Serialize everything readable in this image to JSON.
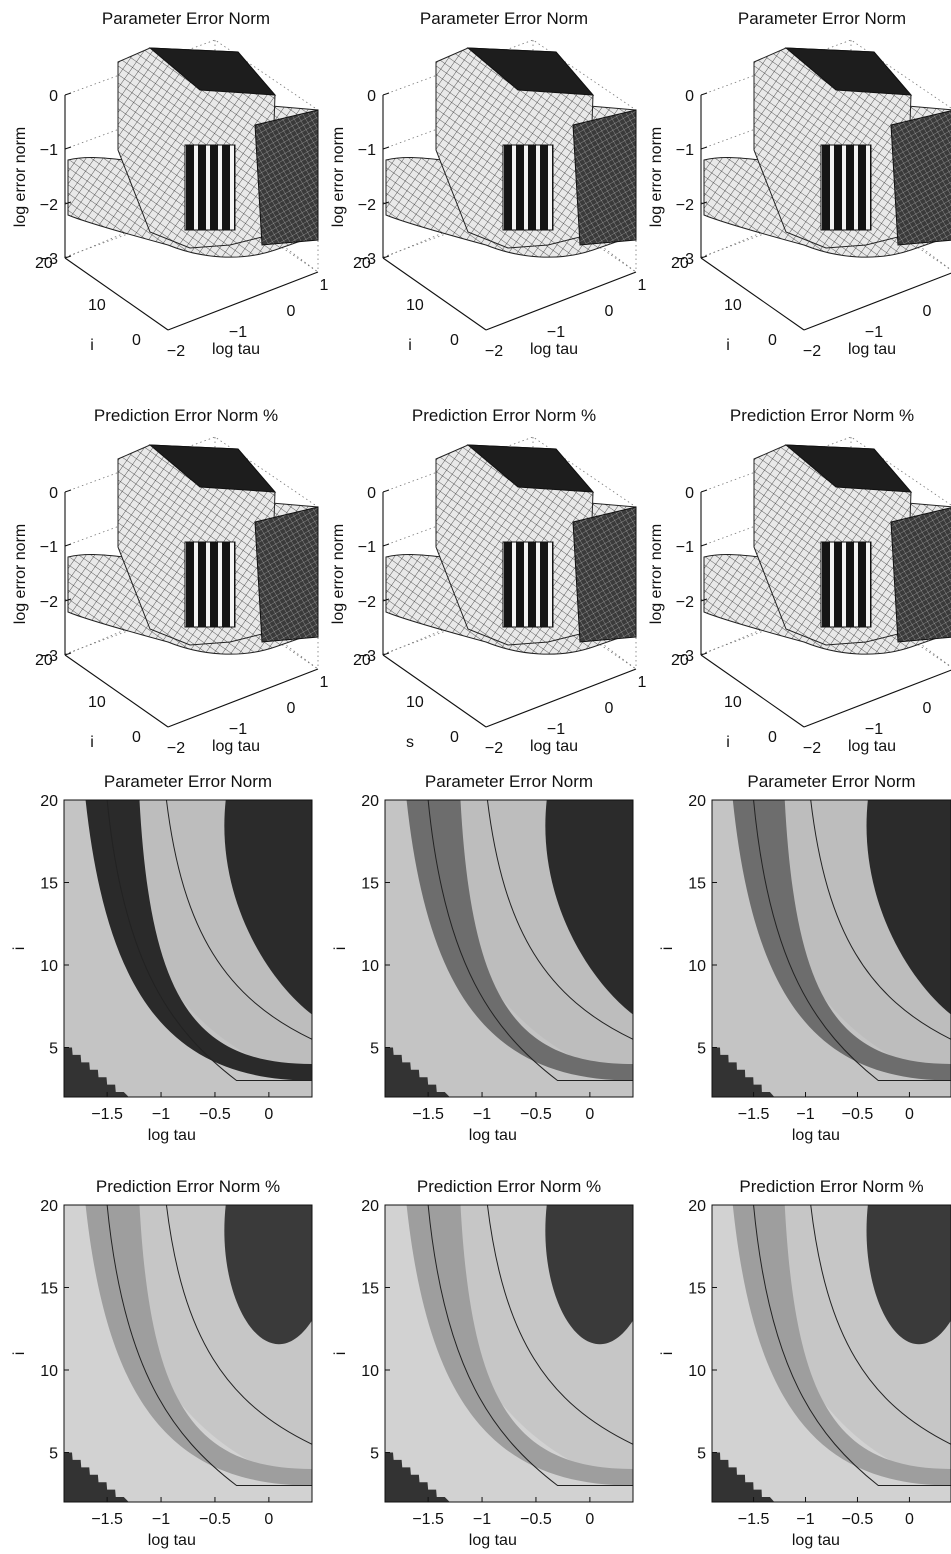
{
  "figure": {
    "panels_3d": [
      {
        "title": "Parameter Error Norm",
        "zlabel": "log error norm",
        "ylabel": "i",
        "xlabel": "log tau",
        "zticks": [
          "0",
          "−1",
          "−2",
          "−3"
        ],
        "yticks": [
          "20",
          "10",
          "0"
        ],
        "xticks": [
          "−2",
          "−1",
          "0",
          "1"
        ]
      },
      {
        "title": "Parameter Error Norm",
        "zlabel": "log error norm",
        "ylabel": "i",
        "xlabel": "log tau",
        "zticks": [
          "0",
          "−1",
          "−2",
          "−3"
        ],
        "yticks": [
          "20",
          "10",
          "0"
        ],
        "xticks": [
          "−2",
          "−1",
          "0",
          "1"
        ]
      },
      {
        "title": "Parameter Error Norm",
        "zlabel": "log error norm",
        "ylabel": "i",
        "xlabel": "log tau",
        "zticks": [
          "0",
          "−1",
          "−2",
          "−3"
        ],
        "yticks": [
          "20",
          "10",
          "0"
        ],
        "xticks": [
          "−2",
          "−1",
          "0",
          ""
        ]
      },
      {
        "title": "Prediction Error Norm %",
        "zlabel": "log error norm",
        "ylabel": "i",
        "xlabel": "log tau",
        "zticks": [
          "0",
          "−1",
          "−2",
          "−3"
        ],
        "yticks": [
          "20",
          "10",
          "0"
        ],
        "xticks": [
          "−2",
          "−1",
          "0",
          "1"
        ]
      },
      {
        "title": "Prediction Error Norm %",
        "zlabel": "log error norm",
        "ylabel": "s",
        "xlabel": "log tau",
        "zticks": [
          "0",
          "−1",
          "−2",
          "−3"
        ],
        "yticks": [
          "20",
          "10",
          "0"
        ],
        "xticks": [
          "−2",
          "−1",
          "0",
          "1"
        ]
      },
      {
        "title": "Prediction Error Norm %",
        "zlabel": "log error norm",
        "ylabel": "i",
        "xlabel": "log tau",
        "zticks": [
          "0",
          "−1",
          "−2",
          "−3"
        ],
        "yticks": [
          "20",
          "10",
          "0"
        ],
        "xticks": [
          "−2",
          "−1",
          "0",
          ""
        ]
      }
    ],
    "panels_contour": [
      {
        "title": "Parameter Error Norm",
        "ylabel": "i",
        "xlabel": "log tau",
        "yticks": [
          "20",
          "15",
          "10",
          "5"
        ],
        "xticks": [
          "−1.5",
          "−1",
          "−0.5",
          "0"
        ]
      },
      {
        "title": "Parameter Error Norm",
        "ylabel": "i",
        "xlabel": "log tau",
        "yticks": [
          "20",
          "15",
          "10",
          "5"
        ],
        "xticks": [
          "−1.5",
          "−1",
          "−0.5",
          "0"
        ]
      },
      {
        "title": "Parameter Error Norm",
        "ylabel": "i",
        "xlabel": "log tau",
        "yticks": [
          "20",
          "15",
          "10",
          "5"
        ],
        "xticks": [
          "−1.5",
          "−1",
          "−0.5",
          "0"
        ]
      },
      {
        "title": "Prediction Error Norm %",
        "ylabel": "i",
        "xlabel": "log tau",
        "yticks": [
          "20",
          "15",
          "10",
          "5"
        ],
        "xticks": [
          "−1.5",
          "−1",
          "−0.5",
          "0"
        ]
      },
      {
        "title": "Prediction Error Norm %",
        "ylabel": "i",
        "xlabel": "log tau",
        "yticks": [
          "20",
          "15",
          "10",
          "5"
        ],
        "xticks": [
          "−1.5",
          "−1",
          "−0.5",
          "0"
        ]
      },
      {
        "title": "Prediction Error Norm %",
        "ylabel": "i",
        "xlabel": "log tau",
        "yticks": [
          "20",
          "15",
          "10",
          "5"
        ],
        "xticks": [
          "−1.5",
          "−1",
          "−0.5",
          "0"
        ]
      }
    ]
  },
  "chart_data": [
    {
      "type": "surface",
      "title": "Parameter Error Norm",
      "xlabel": "log tau",
      "ylabel": "i",
      "zlabel": "log error norm",
      "xlim": [
        -2,
        1
      ],
      "ylim": [
        0,
        20
      ],
      "zlim": [
        -3,
        0
      ]
    },
    {
      "type": "surface",
      "title": "Parameter Error Norm",
      "xlabel": "log tau",
      "ylabel": "i",
      "zlabel": "log error norm",
      "xlim": [
        -2,
        1
      ],
      "ylim": [
        0,
        20
      ],
      "zlim": [
        -3,
        0
      ]
    },
    {
      "type": "surface",
      "title": "Parameter Error Norm",
      "xlabel": "log tau",
      "ylabel": "i",
      "zlabel": "log error norm",
      "xlim": [
        -2,
        1
      ],
      "ylim": [
        0,
        20
      ],
      "zlim": [
        -3,
        0
      ]
    },
    {
      "type": "surface",
      "title": "Prediction Error Norm %",
      "xlabel": "log tau",
      "ylabel": "i",
      "zlabel": "log error norm",
      "xlim": [
        -2,
        1
      ],
      "ylim": [
        0,
        20
      ],
      "zlim": [
        -3,
        0
      ]
    },
    {
      "type": "surface",
      "title": "Prediction Error Norm %",
      "xlabel": "log tau",
      "ylabel": "s",
      "zlabel": "log error norm",
      "xlim": [
        -2,
        1
      ],
      "ylim": [
        0,
        20
      ],
      "zlim": [
        -3,
        0
      ]
    },
    {
      "type": "surface",
      "title": "Prediction Error Norm %",
      "xlabel": "log tau",
      "ylabel": "i",
      "zlabel": "log error norm",
      "xlim": [
        -2,
        1
      ],
      "ylim": [
        0,
        20
      ],
      "zlim": [
        -3,
        0
      ]
    },
    {
      "type": "heatmap",
      "title": "Parameter Error Norm",
      "xlabel": "log tau",
      "ylabel": "i",
      "xlim": [
        -1.9,
        0.4
      ],
      "ylim": [
        2,
        20
      ]
    },
    {
      "type": "heatmap",
      "title": "Parameter Error Norm",
      "xlabel": "log tau",
      "ylabel": "i",
      "xlim": [
        -1.9,
        0.4
      ],
      "ylim": [
        2,
        20
      ]
    },
    {
      "type": "heatmap",
      "title": "Parameter Error Norm",
      "xlabel": "log tau",
      "ylabel": "i",
      "xlim": [
        -1.9,
        0.4
      ],
      "ylim": [
        2,
        20
      ]
    },
    {
      "type": "heatmap",
      "title": "Prediction Error Norm %",
      "xlabel": "log tau",
      "ylabel": "i",
      "xlim": [
        -1.9,
        0.4
      ],
      "ylim": [
        2,
        20
      ]
    },
    {
      "type": "heatmap",
      "title": "Prediction Error Norm %",
      "xlabel": "log tau",
      "ylabel": "i",
      "xlim": [
        -1.9,
        0.4
      ],
      "ylim": [
        2,
        20
      ]
    },
    {
      "type": "heatmap",
      "title": "Prediction Error Norm %",
      "xlabel": "log tau",
      "ylabel": "i",
      "xlim": [
        -1.9,
        0.4
      ],
      "ylim": [
        2,
        20
      ]
    }
  ]
}
